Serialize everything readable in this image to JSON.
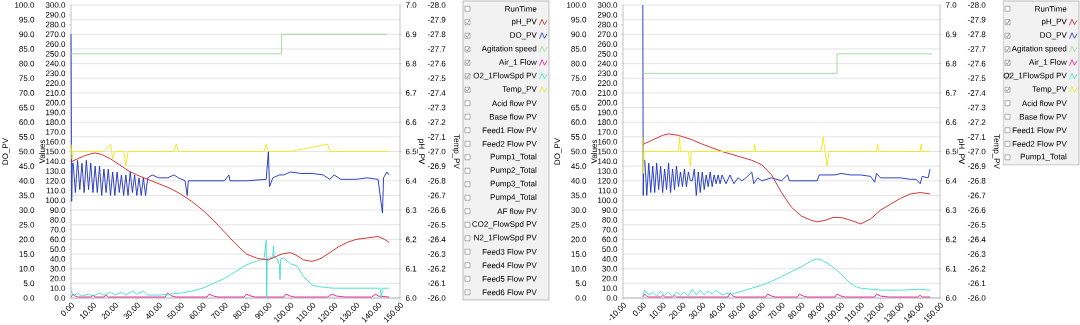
{
  "chart_data": [
    {
      "type": "line",
      "ylabel": "DO_PV",
      "y2label": "Values",
      "y3label": "pH_PV",
      "grid": "y",
      "legend": "right",
      "xlim": [
        0,
        150
      ],
      "xticks": [
        {
          "value": 0,
          "label": "0.00"
        },
        {
          "value": 10,
          "label": "10.00"
        },
        {
          "value": 20,
          "label": "20.00"
        },
        {
          "value": 30,
          "label": "30.00"
        },
        {
          "value": 40,
          "label": "40.00"
        },
        {
          "value": 50,
          "label": "50.00"
        },
        {
          "value": 60,
          "label": "60.00"
        },
        {
          "value": 70,
          "label": "70.00"
        },
        {
          "value": 80,
          "label": "80.00"
        },
        {
          "value": 90,
          "label": "90.00"
        },
        {
          "value": 100,
          "label": "100.00"
        },
        {
          "value": 110,
          "label": "110.00"
        },
        {
          "value": 120,
          "label": "120.00"
        },
        {
          "value": 130,
          "label": "130.00"
        },
        {
          "value": 140,
          "label": "140.00"
        },
        {
          "value": 150,
          "label": "150.00"
        }
      ],
      "ylim": [
        0,
        100
      ],
      "yticks": [
        {
          "value": 0,
          "label": "0.0"
        },
        {
          "value": 5,
          "label": "5.0"
        },
        {
          "value": 10,
          "label": "10.0"
        },
        {
          "value": 15,
          "label": "15.0"
        },
        {
          "value": 20,
          "label": "20.0"
        },
        {
          "value": 25,
          "label": "25.0"
        },
        {
          "value": 30,
          "label": "30.0"
        },
        {
          "value": 35,
          "label": "35.0"
        },
        {
          "value": 40,
          "label": "40.0"
        },
        {
          "value": 45,
          "label": "45.0"
        },
        {
          "value": 50,
          "label": "50.0"
        },
        {
          "value": 55,
          "label": "55.0"
        },
        {
          "value": 60,
          "label": "60.0"
        },
        {
          "value": 65,
          "label": "65.0"
        },
        {
          "value": 70,
          "label": "70.0"
        },
        {
          "value": 75,
          "label": "75.0"
        },
        {
          "value": 80,
          "label": "80.0"
        },
        {
          "value": 85,
          "label": "85.0"
        },
        {
          "value": 90,
          "label": "90.0"
        },
        {
          "value": 95,
          "label": "95.0"
        },
        {
          "value": 100,
          "label": "100.0"
        }
      ],
      "y2lim": [
        0,
        300
      ],
      "y2ticks": [
        {
          "value": 0,
          "label": "0.0"
        },
        {
          "value": 10,
          "label": "10.0"
        },
        {
          "value": 20,
          "label": "20.0"
        },
        {
          "value": 30,
          "label": "30.0"
        },
        {
          "value": 40,
          "label": "40.0"
        },
        {
          "value": 50,
          "label": "50.0"
        },
        {
          "value": 60,
          "label": "60.0"
        },
        {
          "value": 70,
          "label": "70.0"
        },
        {
          "value": 80,
          "label": "80.0"
        },
        {
          "value": 90,
          "label": "90.0"
        },
        {
          "value": 100,
          "label": "100.0"
        },
        {
          "value": 110,
          "label": "110.0"
        },
        {
          "value": 120,
          "label": "120.0"
        },
        {
          "value": 130,
          "label": "130.0"
        },
        {
          "value": 140,
          "label": "140.0"
        },
        {
          "value": 150,
          "label": "150.0"
        },
        {
          "value": 160,
          "label": "160.0"
        },
        {
          "value": 170,
          "label": "170.0"
        },
        {
          "value": 180,
          "label": "180.0"
        },
        {
          "value": 190,
          "label": "190.0"
        },
        {
          "value": 200,
          "label": "200.0"
        },
        {
          "value": 210,
          "label": "210.0"
        },
        {
          "value": 220,
          "label": "220.0"
        },
        {
          "value": 230,
          "label": "230.0"
        },
        {
          "value": 240,
          "label": "240.0"
        },
        {
          "value": 250,
          "label": "250.0"
        },
        {
          "value": 260,
          "label": "260.0"
        },
        {
          "value": 270,
          "label": "270.0"
        },
        {
          "value": 280,
          "label": "280.0"
        },
        {
          "value": 290,
          "label": "290.0"
        },
        {
          "value": 300,
          "label": "300.0"
        }
      ],
      "y3lim": [
        6.0,
        7.0
      ],
      "y3ticks": [
        {
          "value": 6.0,
          "label": "6.0"
        },
        {
          "value": 6.1,
          "label": "6.1"
        },
        {
          "value": 6.2,
          "label": "6.2"
        },
        {
          "value": 6.3,
          "label": "6.3"
        },
        {
          "value": 6.4,
          "label": "6.4"
        },
        {
          "value": 6.5,
          "label": "6.5"
        },
        {
          "value": 6.6,
          "label": "6.6"
        },
        {
          "value": 6.7,
          "label": "6.7"
        },
        {
          "value": 6.8,
          "label": "6.8"
        },
        {
          "value": 6.9,
          "label": "6.9"
        },
        {
          "value": 7.0,
          "label": "7.0"
        }
      ],
      "series": [
        {
          "name": "pH_PV",
          "color": "#cc2222",
          "axis": "y3",
          "x": [
            0,
            3,
            6,
            9,
            11,
            14,
            18,
            22,
            26,
            30,
            35,
            40,
            45,
            50,
            55,
            60,
            65,
            70,
            75,
            80,
            85,
            90,
            93,
            96,
            100,
            103,
            106,
            110,
            114,
            118,
            122,
            126,
            130,
            135,
            140,
            143,
            145
          ],
          "values": [
            6.465,
            6.475,
            6.485,
            6.492,
            6.495,
            6.49,
            6.475,
            6.455,
            6.435,
            6.42,
            6.405,
            6.39,
            6.375,
            6.355,
            6.33,
            6.3,
            6.265,
            6.225,
            6.185,
            6.15,
            6.135,
            6.13,
            6.14,
            6.15,
            6.155,
            6.145,
            6.13,
            6.125,
            6.135,
            6.155,
            6.175,
            6.19,
            6.2,
            6.205,
            6.21,
            6.2,
            6.19
          ]
        },
        {
          "name": "DO_PV",
          "color": "#1a2fc0",
          "x": [
            0,
            0.3,
            0.6,
            1,
            2,
            3,
            4,
            5,
            6,
            7,
            8,
            9,
            10,
            11,
            12,
            13,
            14,
            15,
            16,
            17,
            18,
            19,
            20,
            21,
            22,
            23,
            24,
            25,
            26,
            27,
            28,
            29,
            30,
            31,
            32,
            33,
            34,
            35,
            37,
            40,
            44,
            47,
            49,
            52,
            53,
            53.5,
            60,
            70,
            72,
            72.5,
            80,
            89,
            90,
            90.5,
            92,
            95,
            97,
            100,
            105,
            110,
            115,
            118,
            120,
            123,
            130,
            135,
            140,
            142,
            142.5,
            144,
            145
          ],
          "values": [
            90,
            33,
            46,
            46,
            36,
            47,
            37,
            46,
            36,
            47,
            37,
            46,
            36,
            45,
            36,
            45,
            35,
            44,
            36,
            44,
            35,
            43,
            35,
            43,
            36,
            42,
            35,
            42,
            35,
            43,
            36,
            42,
            35,
            41,
            35,
            41,
            35,
            41,
            42,
            41,
            41,
            42,
            41,
            40,
            35,
            40,
            40,
            40,
            42,
            40,
            40,
            40.5,
            50,
            38,
            41,
            42,
            42,
            43,
            42.5,
            42.5,
            42,
            40.5,
            42,
            40.5,
            40.5,
            41,
            40.5,
            29,
            41,
            43,
            42
          ]
        },
        {
          "name": "Agitation speed",
          "color": "#9ad89a",
          "axis": "y2",
          "x": [
            0,
            96,
            96,
            144
          ],
          "values": [
            250,
            250,
            270,
            270
          ]
        },
        {
          "name": "Air_1 Flow",
          "color": "#e0189a",
          "axis": "y2",
          "x": [
            0,
            1,
            2,
            3,
            9,
            10,
            11,
            15,
            16,
            17,
            43,
            44,
            46,
            48,
            62,
            63,
            65,
            67,
            79,
            80,
            82,
            84,
            97,
            98,
            100,
            102,
            117,
            119,
            121,
            125,
            137,
            139,
            140,
            145
          ],
          "values": [
            1,
            4,
            2,
            1,
            1,
            3,
            1,
            1,
            3,
            1,
            1,
            5,
            2,
            1,
            1,
            4,
            2,
            1,
            1,
            4,
            2,
            1,
            1,
            4,
            2,
            1,
            1,
            4,
            2,
            1,
            1,
            4,
            2,
            1
          ]
        },
        {
          "name": "O2_1FlowSpd PV",
          "color": "#3de0d0",
          "axis": "y2",
          "x": [
            0,
            1,
            3,
            5,
            8,
            10,
            13,
            15,
            18,
            20,
            23,
            25,
            28,
            30,
            33,
            35,
            40,
            50,
            55,
            60,
            65,
            70,
            75,
            80,
            85,
            88,
            89,
            89.2,
            89.5,
            92,
            92.3,
            92.6,
            94,
            95,
            95.3,
            95.6,
            97,
            100,
            103,
            106,
            110,
            115,
            120,
            130,
            141,
            141.5,
            142,
            145
          ],
          "values": [
            8,
            2,
            5,
            2,
            4,
            2,
            5,
            3,
            6,
            3,
            6,
            3,
            7,
            4,
            7,
            3,
            3,
            5,
            7,
            10,
            15,
            20,
            27,
            34,
            38,
            40,
            59,
            0,
            40,
            42,
            53,
            42,
            40,
            34,
            19,
            40,
            41,
            35,
            33,
            22,
            13,
            11,
            10,
            10,
            10,
            0,
            10,
            10
          ]
        }
      ],
      "annotations": [
        "RunTime",
        "Acid flow PV",
        "Base flow PV",
        "Feed1 Flow PV",
        "Feed2 Flow PV",
        "Pump1_Total",
        "Pump2_Total",
        "Pump3_Total",
        "Pump4_Total",
        "AF flow PV",
        "CO2_FlowSpd PV",
        "N2_1FlowSpd PV",
        "Feed3 Flow PV",
        "Feed4 Flow PV",
        "Feed5 Flow PV",
        "Feed6 Flow PV"
      ]
    },
    {
      "type": "line",
      "ylabel": "Temp_PV",
      "tick_labels": "y",
      "xlim": [
        0,
        150
      ],
      "ylim": [
        -26.0,
        -28.0
      ],
      "yticks": [
        {
          "value": -28.0,
          "label": "-28.0"
        },
        {
          "value": -27.9,
          "label": "-27.9"
        },
        {
          "value": -27.8,
          "label": "-27.8"
        },
        {
          "value": -27.7,
          "label": "-27.7"
        },
        {
          "value": -27.6,
          "label": "-27.6"
        },
        {
          "value": -27.5,
          "label": "-27.5"
        },
        {
          "value": -27.4,
          "label": "-27.4"
        },
        {
          "value": -27.3,
          "label": "-27.3"
        },
        {
          "value": -27.2,
          "label": "-27.2"
        },
        {
          "value": -27.1,
          "label": "-27.1"
        },
        {
          "value": -27.0,
          "label": "-27.0"
        },
        {
          "value": -26.9,
          "label": "-26.9"
        },
        {
          "value": -26.8,
          "label": "-26.8"
        },
        {
          "value": -26.7,
          "label": "-26.7"
        },
        {
          "value": -26.6,
          "label": "-26.6"
        },
        {
          "value": -26.5,
          "label": "-26.5"
        },
        {
          "value": -26.4,
          "label": "-26.4"
        },
        {
          "value": -26.3,
          "label": "-26.3"
        },
        {
          "value": -26.2,
          "label": "-26.2"
        },
        {
          "value": -26.1,
          "label": "-26.1"
        },
        {
          "value": -26.0,
          "label": "-26.0"
        }
      ],
      "series": [
        {
          "name": "Temp_PV",
          "color": "#f2e61a",
          "x": [
            0,
            0.5,
            1,
            5,
            10,
            15,
            18,
            19,
            20,
            24,
            25,
            26,
            35,
            47,
            48,
            49,
            60,
            75,
            88,
            89,
            90,
            100,
            117,
            118,
            130,
            144,
            145
          ],
          "values": [
            -27.05,
            -26.95,
            -27.0,
            -27.0,
            -27.0,
            -27.0,
            -27.05,
            -26.95,
            -27.0,
            -27.0,
            -26.9,
            -27.0,
            -27.0,
            -27.0,
            -27.05,
            -27.0,
            -27.0,
            -27.0,
            -27.0,
            -27.05,
            -27.0,
            -27.0,
            -27.05,
            -27.0,
            -27.0,
            -27.0,
            -27.0
          ]
        }
      ]
    },
    {
      "type": "line",
      "ylabel": "DO_PV",
      "y2label": "Values",
      "y3label": "pH_PV",
      "grid": "y",
      "legend": "right",
      "xlim": [
        -10,
        150
      ],
      "xticks": [
        {
          "value": -10,
          "label": "-10.00"
        },
        {
          "value": 0,
          "label": "0.00"
        },
        {
          "value": 10,
          "label": "10.00"
        },
        {
          "value": 20,
          "label": "20.00"
        },
        {
          "value": 30,
          "label": "30.00"
        },
        {
          "value": 40,
          "label": "40.00"
        },
        {
          "value": 50,
          "label": "50.00"
        },
        {
          "value": 60,
          "label": "60.00"
        },
        {
          "value": 70,
          "label": "70.00"
        },
        {
          "value": 80,
          "label": "80.00"
        },
        {
          "value": 90,
          "label": "90.00"
        },
        {
          "value": 100,
          "label": "100.00"
        },
        {
          "value": 110,
          "label": "110.00"
        },
        {
          "value": 120,
          "label": "120.00"
        },
        {
          "value": 130,
          "label": "130.00"
        },
        {
          "value": 140,
          "label": "140.00"
        },
        {
          "value": 150,
          "label": "150.00"
        }
      ],
      "ylim": [
        0,
        100
      ],
      "yticks": [
        {
          "value": 0,
          "label": "0.0"
        },
        {
          "value": 5,
          "label": "5.0"
        },
        {
          "value": 10,
          "label": "10.0"
        },
        {
          "value": 15,
          "label": "15.0"
        },
        {
          "value": 20,
          "label": "20.0"
        },
        {
          "value": 25,
          "label": "25.0"
        },
        {
          "value": 30,
          "label": "30.0"
        },
        {
          "value": 35,
          "label": "35.0"
        },
        {
          "value": 40,
          "label": "40.0"
        },
        {
          "value": 45,
          "label": "45.0"
        },
        {
          "value": 50,
          "label": "50.0"
        },
        {
          "value": 55,
          "label": "55.0"
        },
        {
          "value": 60,
          "label": "60.0"
        },
        {
          "value": 65,
          "label": "65.0"
        },
        {
          "value": 70,
          "label": "70.0"
        },
        {
          "value": 75,
          "label": "75.0"
        },
        {
          "value": 80,
          "label": "80.0"
        },
        {
          "value": 85,
          "label": "85.0"
        },
        {
          "value": 90,
          "label": "90.0"
        },
        {
          "value": 95,
          "label": "95.0"
        },
        {
          "value": 100,
          "label": "100.0"
        }
      ],
      "y2lim": [
        0,
        300
      ],
      "y2ticks": [
        {
          "value": 0,
          "label": "0.0"
        },
        {
          "value": 10,
          "label": "10.0"
        },
        {
          "value": 20,
          "label": "20.0"
        },
        {
          "value": 30,
          "label": "30.0"
        },
        {
          "value": 40,
          "label": "40.0"
        },
        {
          "value": 50,
          "label": "50.0"
        },
        {
          "value": 60,
          "label": "60.0"
        },
        {
          "value": 70,
          "label": "70.0"
        },
        {
          "value": 80,
          "label": "80.0"
        },
        {
          "value": 90,
          "label": "90.0"
        },
        {
          "value": 100,
          "label": "100.0"
        },
        {
          "value": 110,
          "label": "110.0"
        },
        {
          "value": 120,
          "label": "120.0"
        },
        {
          "value": 130,
          "label": "130.0"
        },
        {
          "value": 140,
          "label": "140.0"
        },
        {
          "value": 150,
          "label": "150.0"
        },
        {
          "value": 160,
          "label": "160.0"
        },
        {
          "value": 170,
          "label": "170.0"
        },
        {
          "value": 180,
          "label": "180.0"
        },
        {
          "value": 190,
          "label": "190.0"
        },
        {
          "value": 200,
          "label": "200.0"
        },
        {
          "value": 210,
          "label": "210.0"
        },
        {
          "value": 220,
          "label": "220.0"
        },
        {
          "value": 230,
          "label": "230.0"
        },
        {
          "value": 240,
          "label": "240.0"
        },
        {
          "value": 250,
          "label": "250.0"
        },
        {
          "value": 260,
          "label": "260.0"
        },
        {
          "value": 270,
          "label": "270.0"
        },
        {
          "value": 280,
          "label": "280.0"
        },
        {
          "value": 290,
          "label": "290.0"
        },
        {
          "value": 300,
          "label": "300.0"
        }
      ],
      "y3lim": [
        6.0,
        7.0
      ],
      "y3ticks": [
        {
          "value": 6.0,
          "label": "6.0"
        },
        {
          "value": 6.1,
          "label": "6.1"
        },
        {
          "value": 6.2,
          "label": "6.2"
        },
        {
          "value": 6.3,
          "label": "6.3"
        },
        {
          "value": 6.4,
          "label": "6.4"
        },
        {
          "value": 6.5,
          "label": "6.5"
        },
        {
          "value": 6.6,
          "label": "6.6"
        },
        {
          "value": 6.7,
          "label": "6.7"
        },
        {
          "value": 6.8,
          "label": "6.8"
        },
        {
          "value": 6.9,
          "label": "6.9"
        },
        {
          "value": 7.0,
          "label": "7.0"
        }
      ],
      "series": [
        {
          "name": "pH_PV",
          "color": "#cc2222",
          "axis": "y3",
          "x": [
            0,
            5,
            10,
            13,
            18,
            25,
            30,
            40,
            50,
            55,
            60,
            65,
            70,
            75,
            80,
            85,
            88,
            92,
            96,
            100,
            105,
            110,
            115,
            120,
            125,
            130,
            135,
            140,
            145
          ],
          "values": [
            6.524,
            6.54,
            6.555,
            6.56,
            6.555,
            6.54,
            6.525,
            6.5,
            6.48,
            6.47,
            6.455,
            6.42,
            6.36,
            6.31,
            6.28,
            6.265,
            6.26,
            6.265,
            6.275,
            6.275,
            6.265,
            6.253,
            6.27,
            6.3,
            6.32,
            6.34,
            6.355,
            6.36,
            6.355
          ]
        },
        {
          "name": "DO_PV",
          "color": "#1a2fc0",
          "x": [
            0,
            0.2,
            0.5,
            1,
            2,
            3,
            4,
            5,
            6,
            7,
            8,
            9,
            10,
            11,
            12,
            13,
            14,
            15,
            16,
            17,
            18,
            19,
            20,
            21,
            22,
            23,
            24,
            25,
            26,
            27,
            28,
            29,
            30,
            31,
            32,
            33,
            34,
            35,
            36,
            37,
            38,
            39,
            40,
            42,
            44,
            46,
            48,
            50,
            52,
            55,
            56,
            58,
            60,
            65,
            70,
            73,
            74,
            80,
            88,
            89,
            97,
            100,
            105,
            110,
            115,
            117,
            118,
            120,
            125,
            130,
            135,
            138,
            140,
            141,
            144,
            145
          ],
          "values": [
            100,
            35,
            47,
            47,
            35,
            46,
            36,
            45,
            36,
            46,
            37,
            45,
            36,
            44,
            37,
            46,
            36,
            44,
            37,
            45,
            38,
            43,
            38,
            44,
            38,
            43,
            40,
            40,
            44,
            35,
            43,
            36,
            43,
            37,
            42,
            38,
            43,
            38,
            42,
            39,
            42,
            39,
            42,
            39,
            42,
            39,
            41,
            40,
            41,
            43,
            39,
            41,
            40,
            41,
            40,
            42,
            40,
            40,
            40,
            42,
            42,
            42.5,
            42,
            42,
            41.5,
            39.5,
            42.5,
            41,
            41,
            41,
            40.5,
            40.5,
            39,
            41.5,
            41,
            44
          ]
        },
        {
          "name": "Agitation speed",
          "color": "#9ad89a",
          "axis": "y2",
          "x": [
            0,
            98,
            98,
            146
          ],
          "values": [
            230,
            230,
            250,
            250
          ]
        },
        {
          "name": "Air_1 Flow",
          "color": "#e0189a",
          "axis": "y2",
          "x": [
            0,
            1,
            2,
            3,
            9,
            10,
            11,
            15,
            16,
            17,
            43,
            44,
            45.5,
            47,
            62,
            63,
            65,
            67,
            78,
            79,
            81,
            83,
            97,
            98,
            100,
            102,
            117,
            118,
            120,
            124,
            139,
            140,
            141,
            145
          ],
          "values": [
            1,
            4,
            2,
            1,
            1,
            3,
            1,
            1,
            3,
            1,
            1,
            5,
            2,
            1,
            1,
            4,
            2,
            1,
            1,
            4,
            2,
            1,
            1,
            4,
            2,
            1,
            1,
            4,
            2,
            1,
            1,
            3,
            1,
            1
          ]
        },
        {
          "name": "O2_1FlowSpd PV",
          "color": "#3de0d0",
          "axis": "y2",
          "x": [
            0,
            1,
            3,
            5,
            7,
            9,
            11,
            13,
            15,
            17,
            19,
            21,
            23,
            25,
            27,
            29,
            31,
            33,
            35,
            37,
            40,
            43,
            45,
            50,
            55,
            60,
            65,
            70,
            75,
            80,
            85,
            88,
            90,
            92,
            95,
            97,
            100,
            103,
            107,
            110,
            115,
            120,
            130,
            140,
            145
          ],
          "values": [
            2,
            8,
            3,
            6,
            2,
            7,
            3,
            6,
            2,
            6,
            3,
            6,
            2,
            9,
            3,
            8,
            3,
            7,
            4,
            8,
            3,
            5,
            4,
            7,
            10,
            13,
            17,
            22,
            27,
            32,
            38,
            40,
            39,
            37,
            33,
            30,
            25,
            18,
            12,
            10,
            9,
            8,
            8,
            9,
            8
          ]
        }
      ],
      "annotations": [
        "RunTime",
        "Acid flow PV",
        "Base flow PV",
        "Feed1 Flow PV",
        "Feed2 Flow PV",
        "Pump1_Total"
      ]
    },
    {
      "type": "line",
      "ylabel": "Temp_PV",
      "tick_labels": "y",
      "xlim": [
        -10,
        150
      ],
      "ylim": [
        -26.0,
        -28.0
      ],
      "yticks": [
        {
          "value": -28.0,
          "label": "-28.0"
        },
        {
          "value": -27.9,
          "label": "-27.9"
        },
        {
          "value": -27.8,
          "label": "-27.8"
        },
        {
          "value": -27.7,
          "label": "-27.7"
        },
        {
          "value": -27.6,
          "label": "-27.6"
        },
        {
          "value": -27.5,
          "label": "-27.5"
        },
        {
          "value": -27.4,
          "label": "-27.4"
        },
        {
          "value": -27.3,
          "label": "-27.3"
        },
        {
          "value": -27.2,
          "label": "-27.2"
        },
        {
          "value": -27.1,
          "label": "-27.1"
        },
        {
          "value": -27.0,
          "label": "-27.0"
        },
        {
          "value": -26.9,
          "label": "-26.9"
        },
        {
          "value": -26.8,
          "label": "-26.8"
        },
        {
          "value": -26.7,
          "label": "-26.7"
        },
        {
          "value": -26.6,
          "label": "-26.6"
        },
        {
          "value": -26.5,
          "label": "-26.5"
        },
        {
          "value": -26.4,
          "label": "-26.4"
        },
        {
          "value": -26.3,
          "label": "-26.3"
        },
        {
          "value": -26.2,
          "label": "-26.2"
        },
        {
          "value": -26.1,
          "label": "-26.1"
        },
        {
          "value": -26.0,
          "label": "-26.0"
        }
      ],
      "series": [
        {
          "name": "Temp_PV",
          "color": "#f2e61a",
          "x": [
            0,
            0.3,
            0.6,
            10,
            18,
            18.5,
            19,
            23,
            24,
            24.5,
            40,
            56,
            56.5,
            57,
            90,
            91,
            93,
            94,
            118,
            118.5,
            119,
            140,
            140.5,
            141,
            145
          ],
          "values": [
            -27.1,
            -26.85,
            -27.0,
            -27.0,
            -27.0,
            -27.1,
            -27.0,
            -27.0,
            -26.9,
            -27.0,
            -27.0,
            -27.0,
            -27.05,
            -27.0,
            -27.0,
            -27.1,
            -26.9,
            -27.0,
            -27.0,
            -27.05,
            -27.0,
            -27.0,
            -27.05,
            -27.0,
            -27.0
          ]
        }
      ]
    }
  ]
}
